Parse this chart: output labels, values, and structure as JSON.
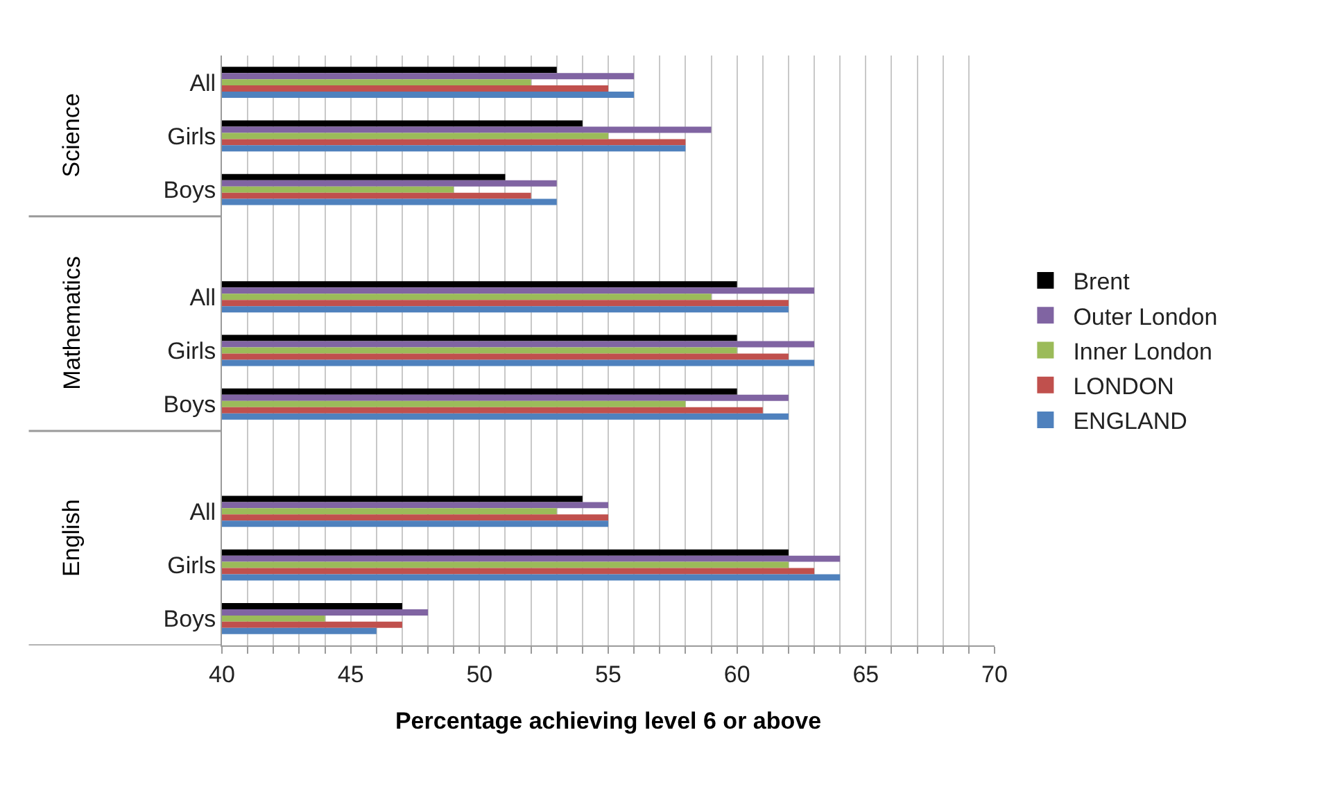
{
  "chart_data": {
    "type": "bar",
    "orientation": "horizontal",
    "xlabel": "Percentage achieving level 6 or above",
    "categories": [
      "All",
      "Girls",
      "Boys",
      null,
      "All",
      "Girls",
      "Boys",
      null,
      "All",
      "Girls",
      "Boys"
    ],
    "annotations": [
      "Science",
      "Mathematics",
      "English"
    ],
    "series": [
      {
        "name": "Brent",
        "color": "#000000",
        "values": [
          53,
          54,
          51,
          null,
          60,
          60,
          60,
          null,
          54,
          62,
          47
        ]
      },
      {
        "name": "Outer London",
        "color": "#8064a2",
        "values": [
          56,
          59,
          53,
          null,
          63,
          63,
          62,
          null,
          55,
          64,
          48
        ]
      },
      {
        "name": "Inner London",
        "color": "#9bbb59",
        "values": [
          52,
          55,
          49,
          null,
          59,
          60,
          58,
          null,
          53,
          62,
          44
        ]
      },
      {
        "name": "LONDON",
        "color": "#c0504d",
        "values": [
          55,
          58,
          52,
          null,
          62,
          62,
          61,
          null,
          55,
          63,
          47
        ]
      },
      {
        "name": "ENGLAND",
        "color": "#4f81bd",
        "values": [
          56,
          58,
          53,
          null,
          62,
          63,
          62,
          null,
          55,
          64,
          46
        ]
      }
    ],
    "xlim": [
      40,
      70
    ],
    "xticks": [
      40,
      {
        "value": 41,
        "label": null
      },
      {
        "value": 42,
        "label": null
      },
      {
        "value": 43,
        "label": null
      },
      {
        "value": 44,
        "label": null
      },
      45,
      {
        "value": 46,
        "label": null
      },
      {
        "value": 47,
        "label": null
      },
      {
        "value": 48,
        "label": null
      },
      {
        "value": 49,
        "label": null
      },
      50,
      {
        "value": 51,
        "label": null
      },
      {
        "value": 52,
        "label": null
      },
      {
        "value": 53,
        "label": null
      },
      {
        "value": 54,
        "label": null
      },
      55,
      {
        "value": 56,
        "label": null
      },
      {
        "value": 57,
        "label": null
      },
      {
        "value": 58,
        "label": null
      },
      {
        "value": 59,
        "label": null
      },
      60,
      {
        "value": 61,
        "label": null
      },
      {
        "value": 62,
        "label": null
      },
      {
        "value": 63,
        "label": null
      },
      {
        "value": 64,
        "label": null
      },
      65,
      {
        "value": 66,
        "label": null
      },
      {
        "value": 67,
        "label": null
      },
      {
        "value": 68,
        "label": null
      },
      {
        "value": 69,
        "label": null
      },
      70
    ],
    "grid": "x",
    "legend": "right"
  }
}
